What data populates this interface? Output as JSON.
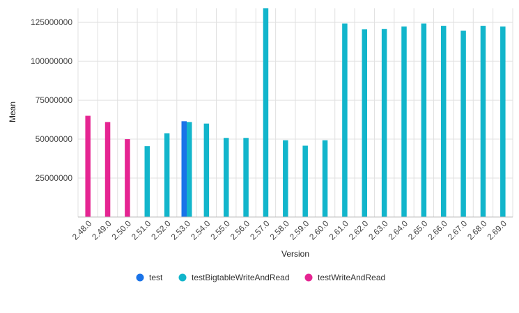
{
  "chart_data": {
    "type": "bar",
    "title": "",
    "xlabel": "Version",
    "ylabel": "Mean",
    "ylim": [
      0,
      134000000
    ],
    "yticks": [
      25000000,
      50000000,
      75000000,
      100000000,
      125000000
    ],
    "ytick_labels": [
      "25000000",
      "50000000",
      "75000000",
      "100000000",
      "125000000"
    ],
    "grid": true,
    "legend_position": "bottom",
    "categories": [
      "2.48.0",
      "2.49.0",
      "2.50.0",
      "2.51.0",
      "2.52.0",
      "2.53.0",
      "2.54.0",
      "2.55.0",
      "2.56.0",
      "2.57.0",
      "2.58.0",
      "2.59.0",
      "2.60.0",
      "2.61.0",
      "2.62.0",
      "2.63.0",
      "2.64.0",
      "2.65.0",
      "2.66.0",
      "2.67.0",
      "2.68.0",
      "2.69.0"
    ],
    "series": [
      {
        "name": "test",
        "color": "#1a73e8",
        "values": [
          null,
          null,
          null,
          null,
          null,
          61500000,
          null,
          null,
          null,
          null,
          null,
          null,
          null,
          null,
          null,
          null,
          null,
          null,
          null,
          null,
          null,
          null
        ]
      },
      {
        "name": "testBigtableWriteAndRead",
        "color": "#12b5cb",
        "values": [
          null,
          null,
          null,
          45500000,
          53800000,
          61000000,
          60000000,
          50800000,
          50800000,
          134000000,
          49300000,
          45800000,
          49300000,
          124300000,
          120500000,
          120700000,
          122300000,
          124300000,
          122800000,
          119700000,
          122800000,
          122300000
        ]
      },
      {
        "name": "testWriteAndRead",
        "color": "#e52592",
        "values": [
          65000000,
          61000000,
          50000000,
          null,
          null,
          null,
          null,
          null,
          null,
          null,
          null,
          null,
          null,
          null,
          null,
          null,
          null,
          null,
          null,
          null,
          null,
          null
        ]
      }
    ]
  }
}
